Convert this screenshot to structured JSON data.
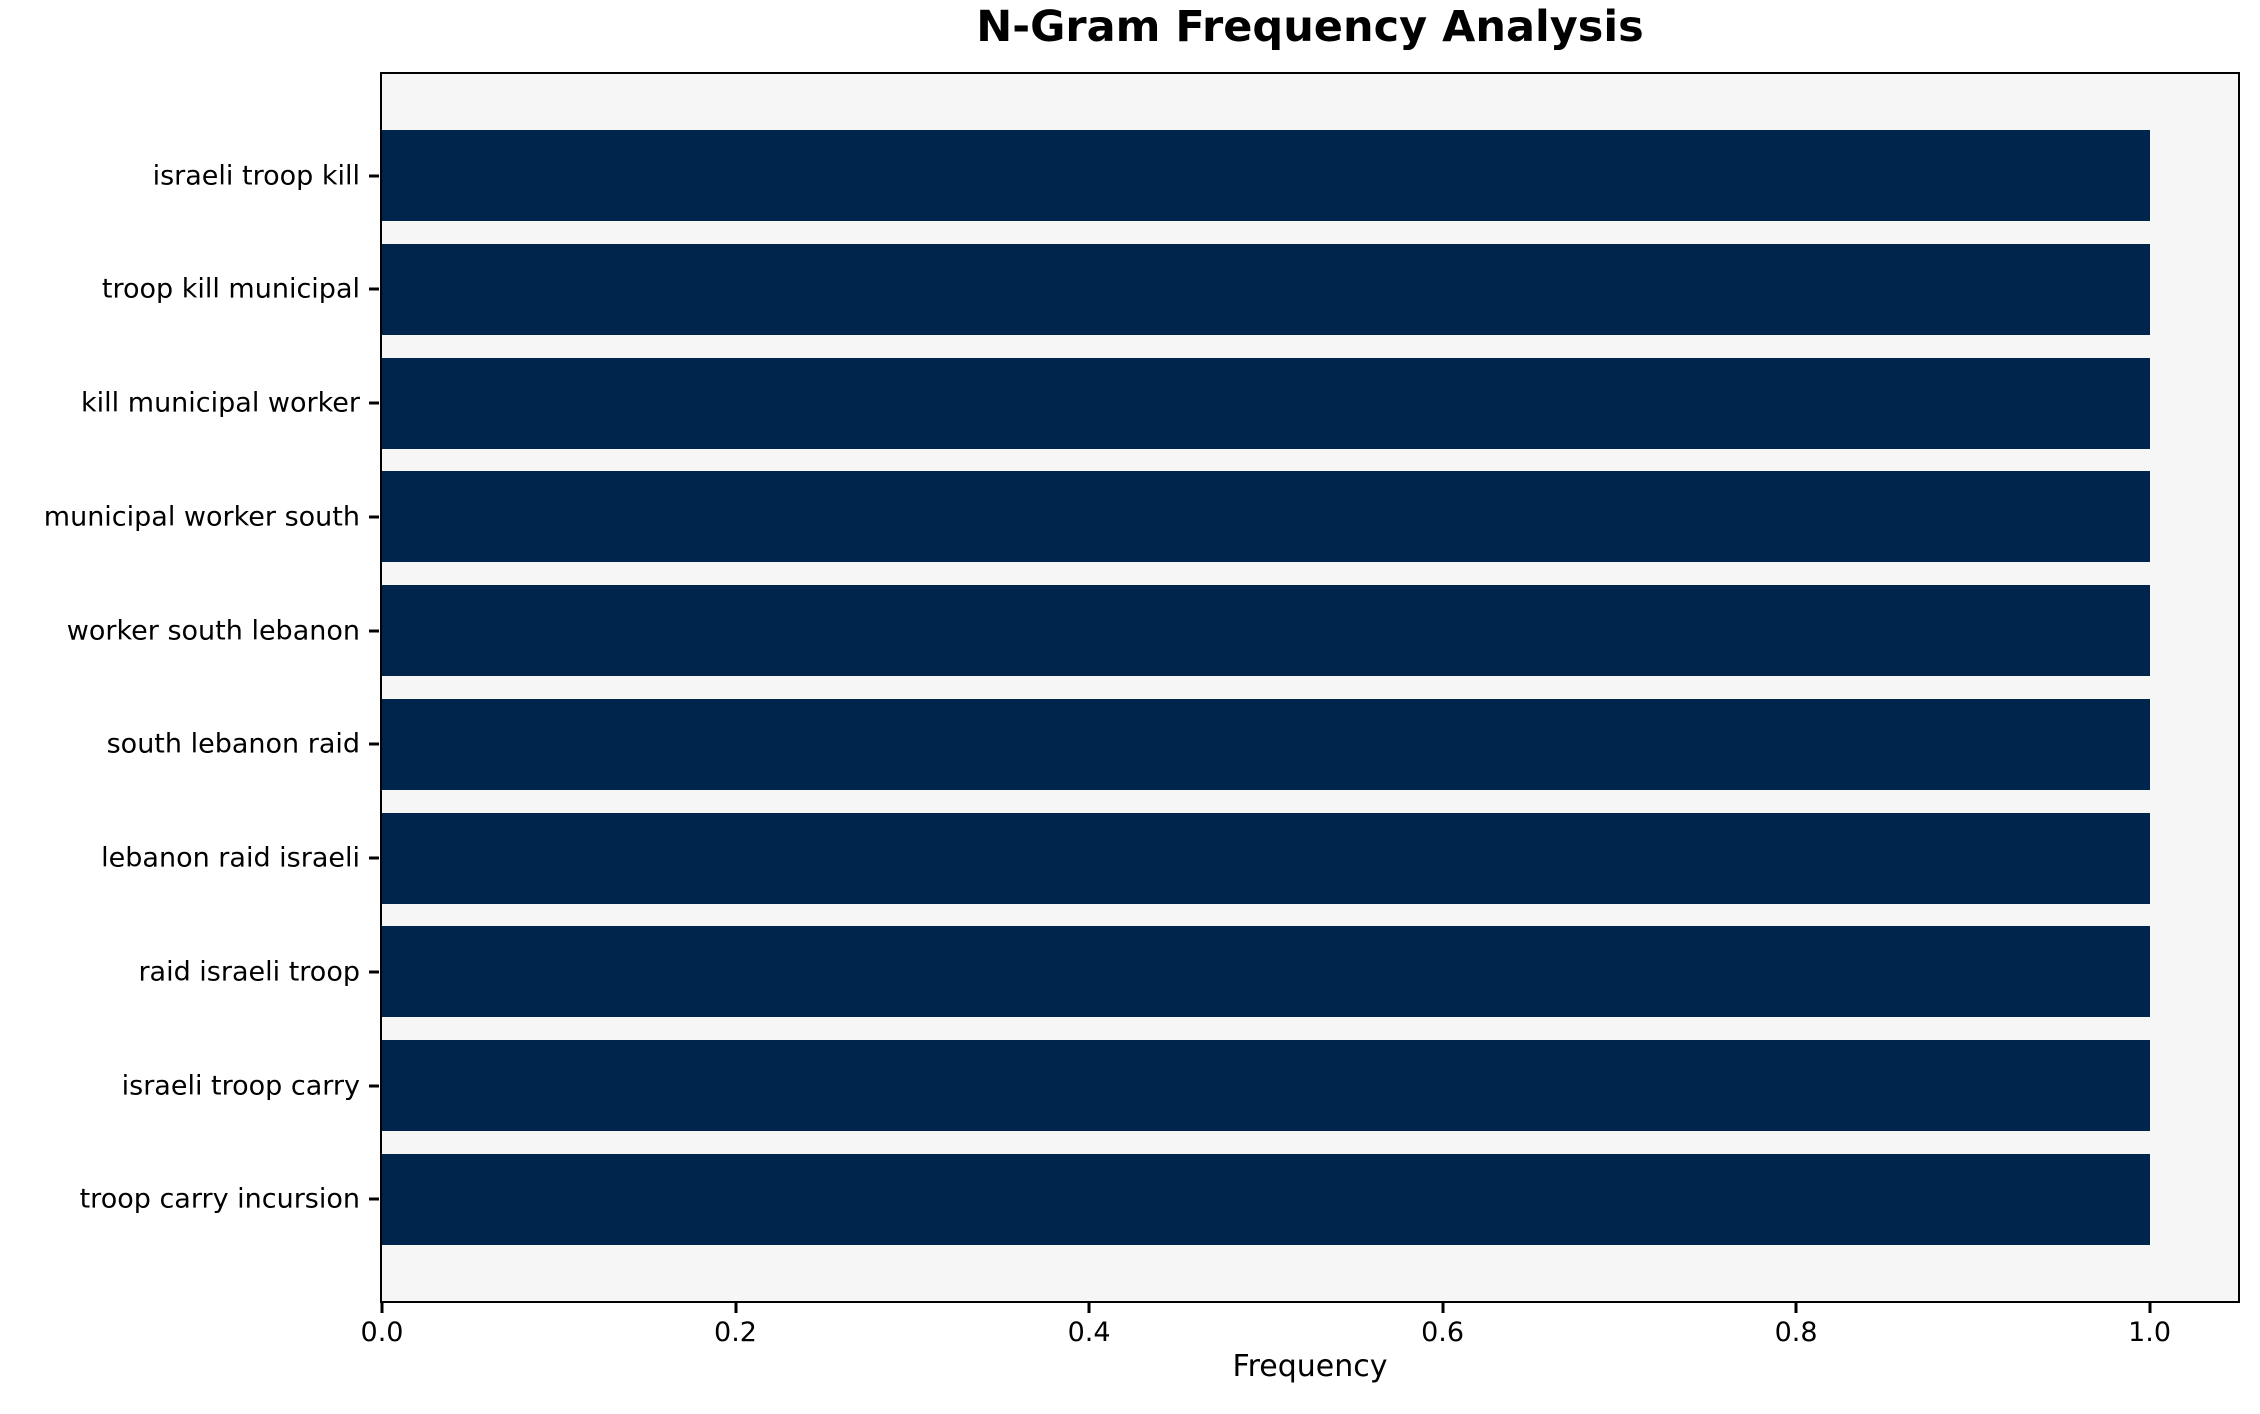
{
  "chart_data": {
    "type": "bar",
    "orientation": "horizontal",
    "title": "N-Gram Frequency Analysis",
    "xlabel": "Frequency",
    "ylabel": "",
    "categories": [
      "israeli troop kill",
      "troop kill municipal",
      "kill municipal worker",
      "municipal worker south",
      "worker south lebanon",
      "south lebanon raid",
      "lebanon raid israeli",
      "raid israeli troop",
      "israeli troop carry",
      "troop carry incursion"
    ],
    "values": [
      1.0,
      1.0,
      1.0,
      1.0,
      1.0,
      1.0,
      1.0,
      1.0,
      1.0,
      1.0
    ],
    "xlim": [
      0,
      1.05
    ],
    "xticks": [
      0.0,
      0.2,
      0.4,
      0.6,
      0.8,
      1.0
    ],
    "xtick_labels": [
      "0.0",
      "0.2",
      "0.4",
      "0.6",
      "0.8",
      "1.0"
    ],
    "grid": false,
    "legend_position": "none",
    "bar_color": "#00254d",
    "plot_background": "#f6f6f6",
    "figure_background": "#ffffff",
    "spine_color": "#000000",
    "text_color": "#000000"
  }
}
